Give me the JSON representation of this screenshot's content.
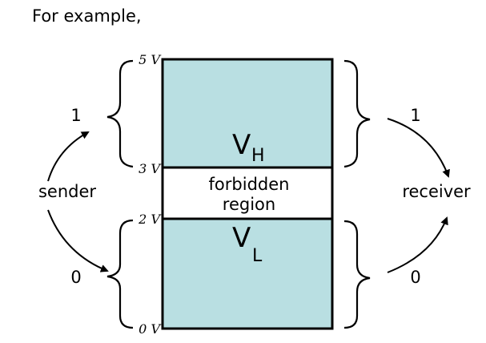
{
  "intro": "For example,",
  "voltages": {
    "top": "5 V",
    "vh_low": "3 V",
    "vl_high": "2 V",
    "bottom": "0 V"
  },
  "regions": {
    "high_main": "V",
    "high_sub": "H",
    "forbidden_line1": "forbidden",
    "forbidden_line2": "region",
    "low_main": "V",
    "low_sub": "L"
  },
  "sender": {
    "label": "sender",
    "one": "1",
    "zero": "0"
  },
  "receiver": {
    "label": "receiver",
    "one": "1",
    "zero": "0"
  },
  "colors": {
    "band_fill": "#b9dfe2",
    "stroke": "#000000"
  }
}
